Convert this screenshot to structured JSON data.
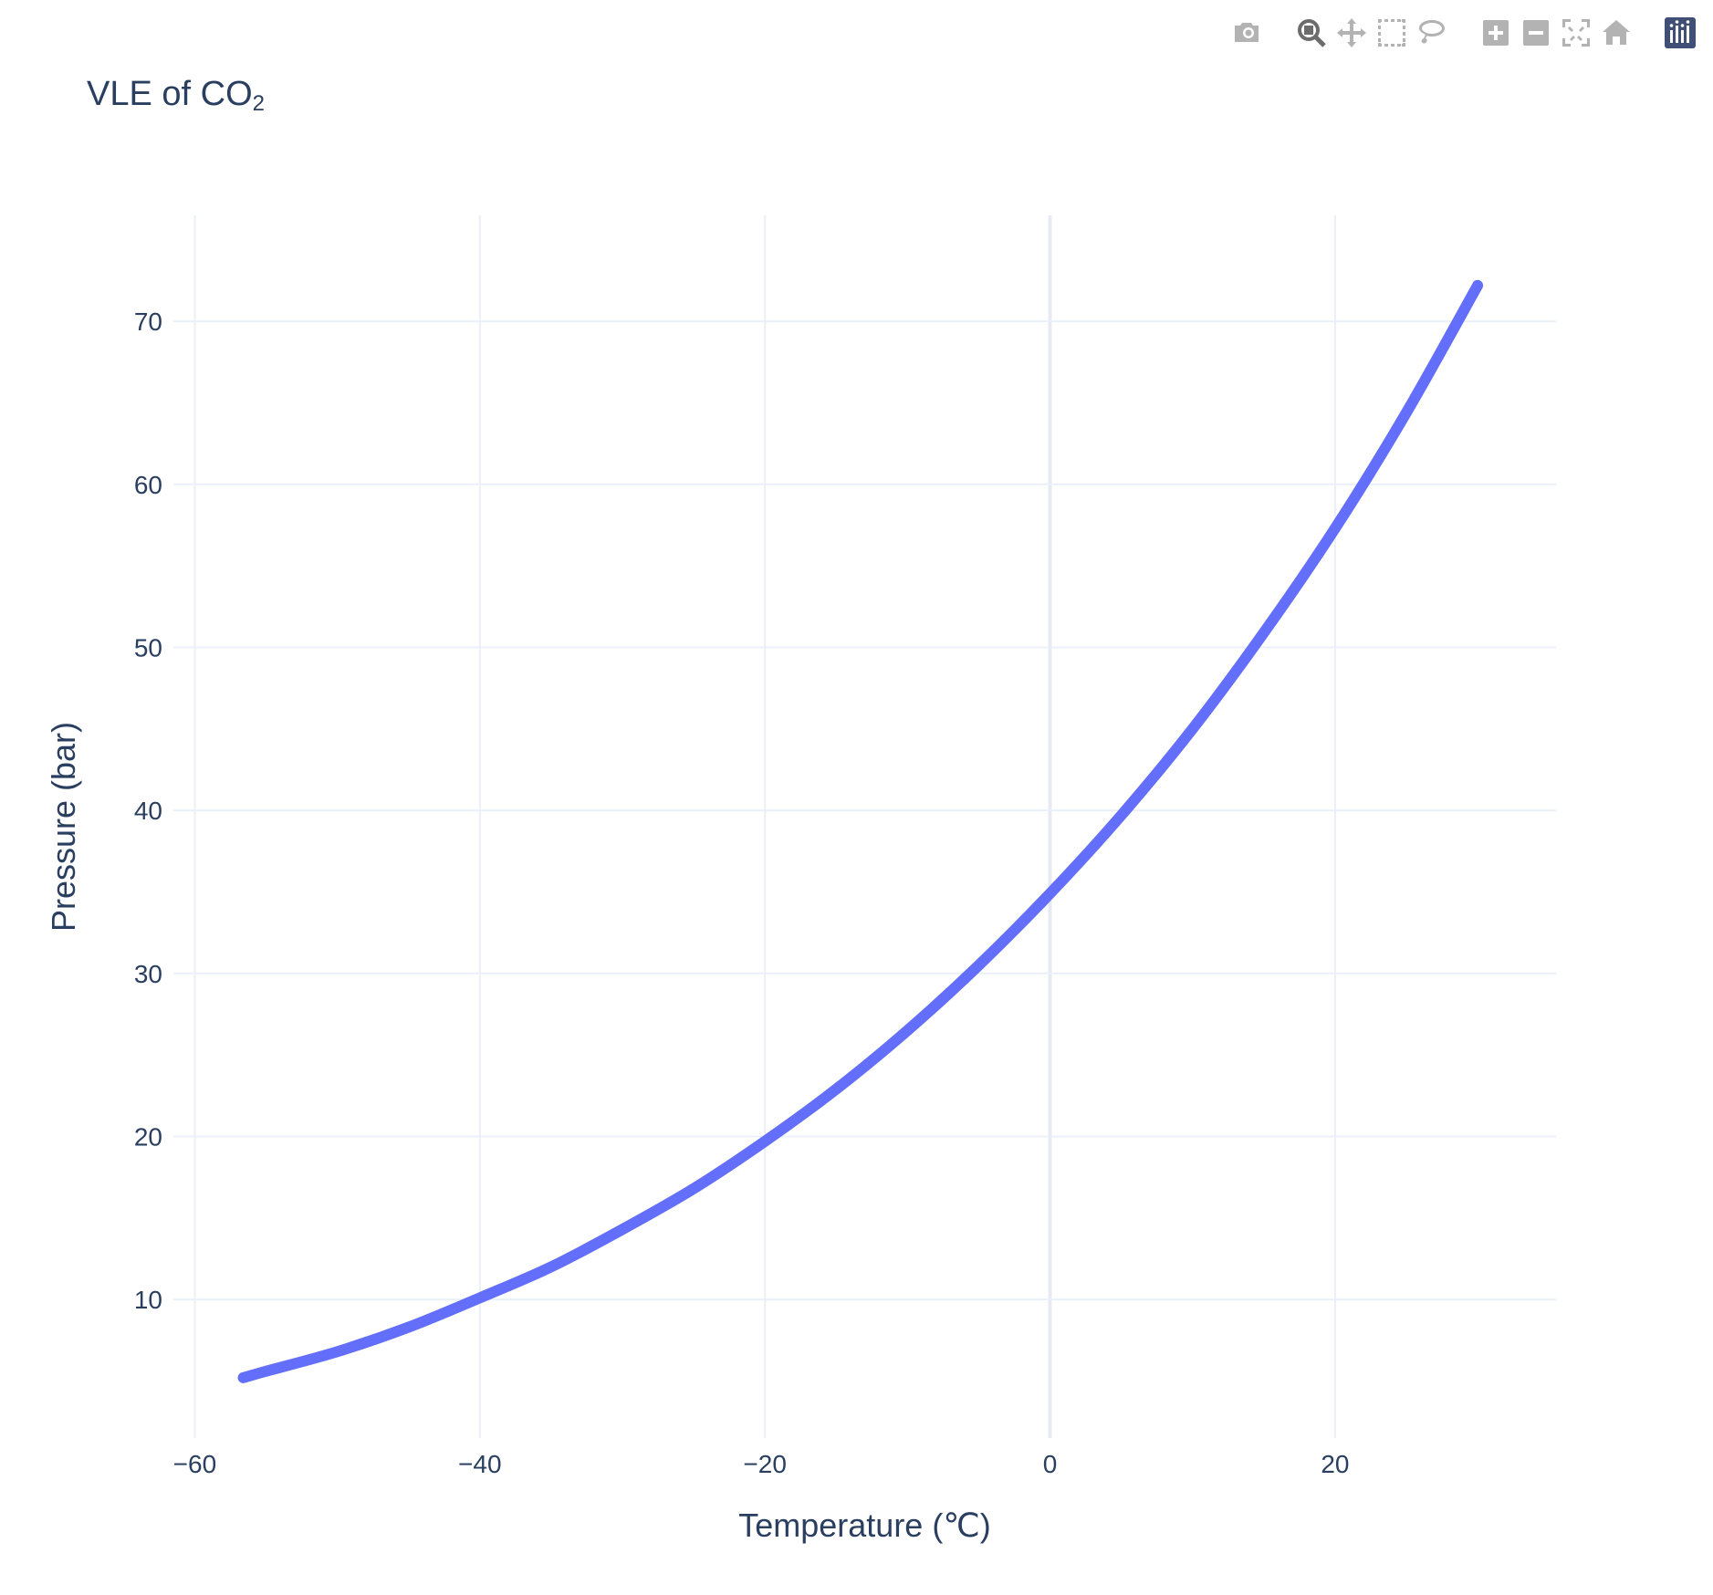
{
  "modebar": {
    "buttons": [
      {
        "name": "camera-icon",
        "title": "Download plot as a png",
        "group": 1
      },
      {
        "name": "zoom-icon",
        "title": "Zoom",
        "group": 2,
        "active": true
      },
      {
        "name": "pan-icon",
        "title": "Pan",
        "group": 2
      },
      {
        "name": "box-select-icon",
        "title": "Box Select",
        "group": 2
      },
      {
        "name": "lasso-select-icon",
        "title": "Lasso Select",
        "group": 2
      },
      {
        "name": "zoom-in-icon",
        "title": "Zoom in",
        "group": 3
      },
      {
        "name": "zoom-out-icon",
        "title": "Zoom out",
        "group": 3
      },
      {
        "name": "autoscale-icon",
        "title": "Autoscale",
        "group": 3
      },
      {
        "name": "reset-axes-icon",
        "title": "Reset axes",
        "group": 3
      },
      {
        "name": "plotly-logo-icon",
        "title": "Produced with Plotly",
        "group": 4
      }
    ]
  },
  "title": {
    "main": "VLE of CO",
    "subscript": "2"
  },
  "chart_data": {
    "type": "line",
    "title": "VLE of CO₂",
    "xlabel": "Temperature (℃)",
    "ylabel": "Pressure (bar)",
    "xlim": [
      -61.5,
      35.5
    ],
    "ylim": [
      1.5,
      76.5
    ],
    "xticks": [
      -60,
      -40,
      -20,
      0,
      20
    ],
    "xtick_labels": [
      "−60",
      "−40",
      "−20",
      "0",
      "20"
    ],
    "yticks": [
      10,
      20,
      30,
      40,
      50,
      60,
      70
    ],
    "ytick_labels": [
      "10",
      "20",
      "30",
      "40",
      "50",
      "60",
      "70"
    ],
    "grid": true,
    "legend": false,
    "line_color": "#636efa",
    "series": [
      {
        "x": [
          -56.6,
          -55,
          -50,
          -45,
          -40,
          -35,
          -30,
          -25,
          -20,
          -15,
          -10,
          -5,
          0,
          5,
          10,
          15,
          20,
          25,
          30
        ],
        "y": [
          5.2,
          5.6,
          6.8,
          8.3,
          10.1,
          12.0,
          14.3,
          16.8,
          19.7,
          22.9,
          26.5,
          30.5,
          34.9,
          39.7,
          45.0,
          50.9,
          57.3,
          64.4,
          72.2
        ]
      }
    ]
  }
}
